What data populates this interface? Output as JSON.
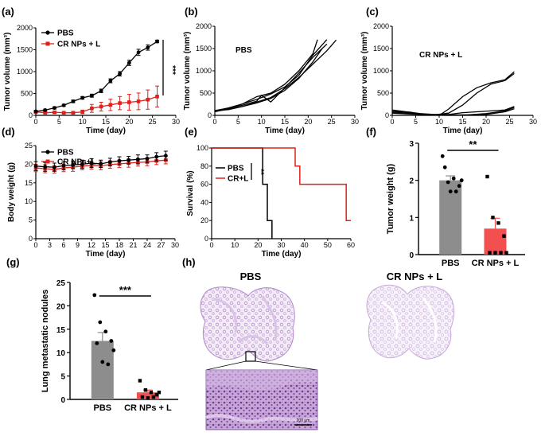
{
  "colors": {
    "black": "#000000",
    "red": "#e0201b",
    "gray": "#8d8d8d",
    "salmon": "#f25050",
    "tissue": "#c9a9d6",
    "tissue_dark": "#9a6fb4"
  },
  "panels": {
    "a": "(a)",
    "b": "(b)",
    "c": "(c)",
    "d": "(d)",
    "e": "(e)",
    "f": "(f)",
    "g": "(g)",
    "h": "(h)"
  },
  "histology": {
    "title_left": "PBS",
    "title_right": "CR NPs + L",
    "scale_label": "200 μm"
  },
  "chart_data": [
    {
      "id": "a",
      "type": "line",
      "xlabel": "Time (day)",
      "ylabel": "Tumor volume (mm³)",
      "xlim": [
        0,
        30
      ],
      "ylim": [
        0,
        2000
      ],
      "xticks": [
        0,
        5,
        10,
        15,
        20,
        25,
        30
      ],
      "yticks": [
        0,
        500,
        1000,
        1500,
        2000
      ],
      "annotation": "***",
      "series": [
        {
          "name": "PBS",
          "color": "#000000",
          "x": [
            0,
            2,
            4,
            6,
            8,
            10,
            12,
            14,
            16,
            18,
            20,
            22,
            24,
            26
          ],
          "y": [
            90,
            120,
            170,
            230,
            320,
            400,
            450,
            560,
            790,
            950,
            1200,
            1440,
            1550,
            1690
          ],
          "err": [
            20,
            20,
            25,
            25,
            30,
            30,
            35,
            40,
            45,
            50,
            60,
            70,
            60,
            30
          ]
        },
        {
          "name": "CR NPs + L",
          "color": "#e0201b",
          "x": [
            0,
            2,
            4,
            6,
            8,
            10,
            12,
            14,
            16,
            18,
            20,
            22,
            24,
            26
          ],
          "y": [
            80,
            60,
            70,
            60,
            60,
            80,
            160,
            200,
            240,
            280,
            300,
            320,
            360,
            430
          ],
          "err": [
            30,
            20,
            25,
            20,
            20,
            40,
            90,
            100,
            130,
            150,
            180,
            190,
            220,
            240
          ]
        }
      ]
    },
    {
      "id": "b",
      "type": "line",
      "title": "PBS",
      "xlabel": "Time (day)",
      "ylabel": "Tumor volume (mm³)",
      "xlim": [
        0,
        30
      ],
      "ylim": [
        0,
        2000
      ],
      "xticks": [
        0,
        5,
        10,
        15,
        20,
        25,
        30
      ],
      "yticks": [
        0,
        500,
        1000,
        1500,
        2000
      ],
      "series": [
        {
          "name": "m1",
          "x": [
            0,
            3,
            6,
            9,
            12,
            15,
            18,
            21,
            24
          ],
          "y": [
            100,
            170,
            260,
            360,
            480,
            640,
            900,
            1350,
            1700
          ]
        },
        {
          "name": "m2",
          "x": [
            0,
            3,
            6,
            9,
            12,
            15,
            18,
            21,
            24,
            26
          ],
          "y": [
            90,
            140,
            200,
            300,
            400,
            600,
            850,
            1150,
            1450,
            1690
          ]
        },
        {
          "name": "m3",
          "x": [
            0,
            3,
            6,
            9,
            12,
            15,
            18,
            21,
            22
          ],
          "y": [
            80,
            150,
            260,
            420,
            500,
            700,
            1000,
            1380,
            1700
          ]
        },
        {
          "name": "m4",
          "x": [
            0,
            3,
            6,
            9,
            10,
            12,
            15,
            18,
            21,
            24
          ],
          "y": [
            110,
            160,
            230,
            320,
            450,
            300,
            620,
            950,
            1300,
            1600
          ]
        },
        {
          "name": "m5",
          "x": [
            0,
            3,
            6,
            9,
            12,
            15,
            18,
            21,
            23
          ],
          "y": [
            100,
            130,
            200,
            280,
            380,
            560,
            830,
            1200,
            1500
          ]
        }
      ]
    },
    {
      "id": "c",
      "type": "line",
      "title": "CR NPs + L",
      "xlabel": "Time (day)",
      "ylabel": "Tumor volume (mm³)",
      "xlim": [
        0,
        30
      ],
      "ylim": [
        0,
        2000
      ],
      "xticks": [
        0,
        5,
        10,
        15,
        20,
        25,
        30
      ],
      "yticks": [
        0,
        500,
        1000,
        1500,
        2000
      ],
      "series": [
        {
          "name": "m1",
          "x": [
            0,
            3,
            6,
            9,
            12,
            15,
            18,
            21,
            24,
            26
          ],
          "y": [
            120,
            80,
            40,
            20,
            20,
            60,
            80,
            100,
            120,
            200
          ]
        },
        {
          "name": "m2",
          "x": [
            0,
            4,
            8,
            10,
            12,
            15,
            18,
            21,
            24,
            26
          ],
          "y": [
            80,
            60,
            10,
            0,
            140,
            420,
            620,
            730,
            800,
            980
          ]
        },
        {
          "name": "m3",
          "x": [
            0,
            4,
            6,
            8,
            12,
            15,
            18,
            21,
            24,
            26
          ],
          "y": [
            90,
            70,
            10,
            0,
            50,
            230,
            500,
            700,
            780,
            940
          ]
        },
        {
          "name": "m4",
          "x": [
            0,
            4,
            8,
            12,
            16,
            20,
            24,
            26
          ],
          "y": [
            60,
            40,
            20,
            10,
            10,
            20,
            80,
            150
          ]
        },
        {
          "name": "m5",
          "x": [
            0,
            4,
            8,
            12,
            16,
            20,
            24,
            26
          ],
          "y": [
            50,
            30,
            10,
            0,
            10,
            40,
            100,
            180
          ]
        }
      ]
    },
    {
      "id": "d",
      "type": "line",
      "xlabel": "Time (day)",
      "ylabel": "Body weight (g)",
      "xlim": [
        0,
        30
      ],
      "ylim": [
        0,
        25
      ],
      "xticks": [
        0,
        3,
        6,
        9,
        12,
        15,
        18,
        21,
        24,
        27,
        30
      ],
      "yticks": [
        0,
        5,
        10,
        15,
        20,
        25
      ],
      "series": [
        {
          "name": "PBS",
          "color": "#000000",
          "x": [
            0,
            2,
            4,
            6,
            8,
            10,
            12,
            14,
            16,
            18,
            20,
            22,
            24,
            26,
            28
          ],
          "y": [
            19.5,
            19.3,
            19.2,
            19.6,
            19.8,
            20.0,
            20.3,
            20.1,
            20.6,
            20.9,
            21.1,
            21.3,
            21.5,
            22.0,
            22.3
          ],
          "err": [
            1.2,
            1.2,
            1.1,
            1.1,
            1.0,
            1.1,
            1.2,
            1.0,
            1.0,
            1.1,
            1.0,
            1.2,
            1.0,
            1.1,
            1.2
          ]
        },
        {
          "name": "CR NPs+L",
          "color": "#e0201b",
          "x": [
            0,
            2,
            4,
            6,
            8,
            10,
            12,
            14,
            16,
            18,
            20,
            22,
            24,
            26,
            28
          ],
          "y": [
            19.0,
            18.8,
            18.6,
            19.0,
            19.2,
            19.5,
            19.7,
            19.6,
            19.9,
            20.1,
            20.3,
            20.5,
            20.6,
            20.9,
            21.1
          ],
          "err": [
            1.0,
            1.1,
            1.0,
            1.0,
            1.1,
            1.0,
            1.0,
            1.1,
            1.0,
            1.0,
            1.1,
            1.0,
            1.0,
            1.0,
            1.0
          ]
        }
      ]
    },
    {
      "id": "e",
      "type": "line",
      "xlabel": "Time (day)",
      "ylabel": "Survival (%)",
      "xlim": [
        0,
        60
      ],
      "ylim": [
        0,
        100
      ],
      "xticks": [
        0,
        10,
        20,
        30,
        40,
        50,
        60
      ],
      "yticks": [
        0,
        20,
        40,
        60,
        80,
        100
      ],
      "annotation": "**",
      "series": [
        {
          "name": "PBS",
          "color": "#000000",
          "steps": [
            [
              0,
              100
            ],
            [
              22,
              100
            ],
            [
              22,
              60
            ],
            [
              24,
              60
            ],
            [
              24,
              20
            ],
            [
              26,
              20
            ],
            [
              26,
              0
            ]
          ]
        },
        {
          "name": "CR+L",
          "color": "#e0201b",
          "steps": [
            [
              0,
              100
            ],
            [
              36,
              100
            ],
            [
              36,
              80
            ],
            [
              38,
              80
            ],
            [
              38,
              60
            ],
            [
              58,
              60
            ],
            [
              58,
              20
            ],
            [
              60,
              20
            ]
          ]
        }
      ]
    },
    {
      "id": "f",
      "type": "bar",
      "ylabel": "Tumor weight (g)",
      "categories": [
        "PBS",
        "CR NPs + L"
      ],
      "values": [
        2.0,
        0.7
      ],
      "err": [
        0.12,
        0.28
      ],
      "ylim": [
        0,
        3
      ],
      "yticks": [
        0,
        1,
        2,
        3
      ],
      "annotation": "**",
      "points": [
        [
          2.65,
          1.95,
          2.05,
          1.85,
          2.35,
          1.7,
          1.7,
          2.0
        ],
        [
          2.1,
          1.0,
          0.85,
          0.5,
          0.05,
          0.05,
          0.05,
          0.05
        ]
      ]
    },
    {
      "id": "g",
      "type": "bar",
      "ylabel": "Lung metastatic nodules",
      "categories": [
        "PBS",
        "CR NPs + L"
      ],
      "values": [
        12.5,
        1.5
      ],
      "err": [
        1.8,
        0.5
      ],
      "ylim": [
        0,
        25
      ],
      "yticks": [
        0,
        5,
        10,
        15,
        20,
        25
      ],
      "annotation": "***",
      "points": [
        [
          22.3,
          16.5,
          14.5,
          12.5,
          12.0,
          8.0,
          7.5,
          10.5
        ],
        [
          4.0,
          2.0,
          1.5,
          1.0,
          0.5,
          0.3,
          0.5,
          1.5
        ]
      ]
    }
  ]
}
